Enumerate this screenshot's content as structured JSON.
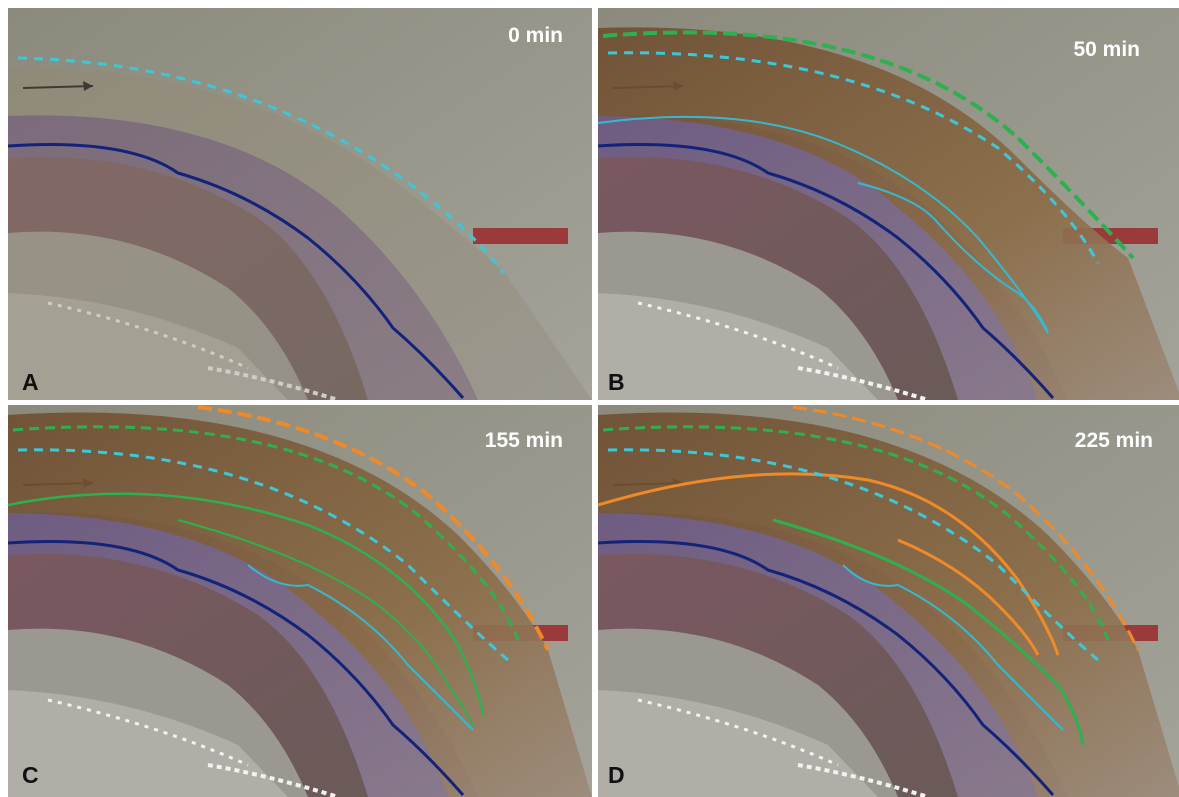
{
  "panels": [
    {
      "label": "A",
      "time": "0 min"
    },
    {
      "label": "B",
      "time": "50 min"
    },
    {
      "label": "C",
      "time": "155 min"
    },
    {
      "label": "D",
      "time": "225 min"
    }
  ]
}
